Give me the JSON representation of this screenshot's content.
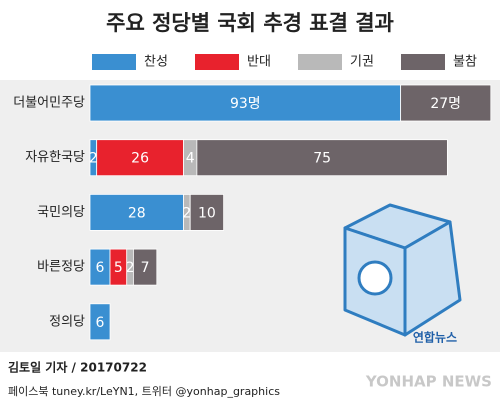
{
  "chart_data": {
    "type": "stacked-barh",
    "title": "주요 정당별 국회 추경 표결 결과",
    "categories": [
      "더불어민주당",
      "자유한국당",
      "국민의당",
      "바른정당",
      "정의당"
    ],
    "series": [
      {
        "name": "찬성",
        "color": "#3a8fd1",
        "values": [
          93,
          2,
          28,
          6,
          6
        ],
        "value_labels": [
          "93명",
          null,
          null,
          null,
          null
        ]
      },
      {
        "name": "반대",
        "color": "#e8222d",
        "values": [
          0,
          26,
          0,
          5,
          0
        ]
      },
      {
        "name": "기권",
        "color": "#b9b9b9",
        "values": [
          0,
          4,
          2,
          2,
          0
        ]
      },
      {
        "name": "불참",
        "color": "#6d6468",
        "values": [
          27,
          75,
          10,
          7,
          0
        ],
        "value_labels": [
          "27명",
          null,
          null,
          null,
          null
        ]
      }
    ]
  },
  "footer": {
    "credit": "김토일 기자 / 20170722",
    "sns": "페이스북 tuney.kr/LeYN1, 트위터 @yonhap_graphics",
    "logo": "연합뉴스",
    "watermark": "YONHAP NEWS"
  }
}
